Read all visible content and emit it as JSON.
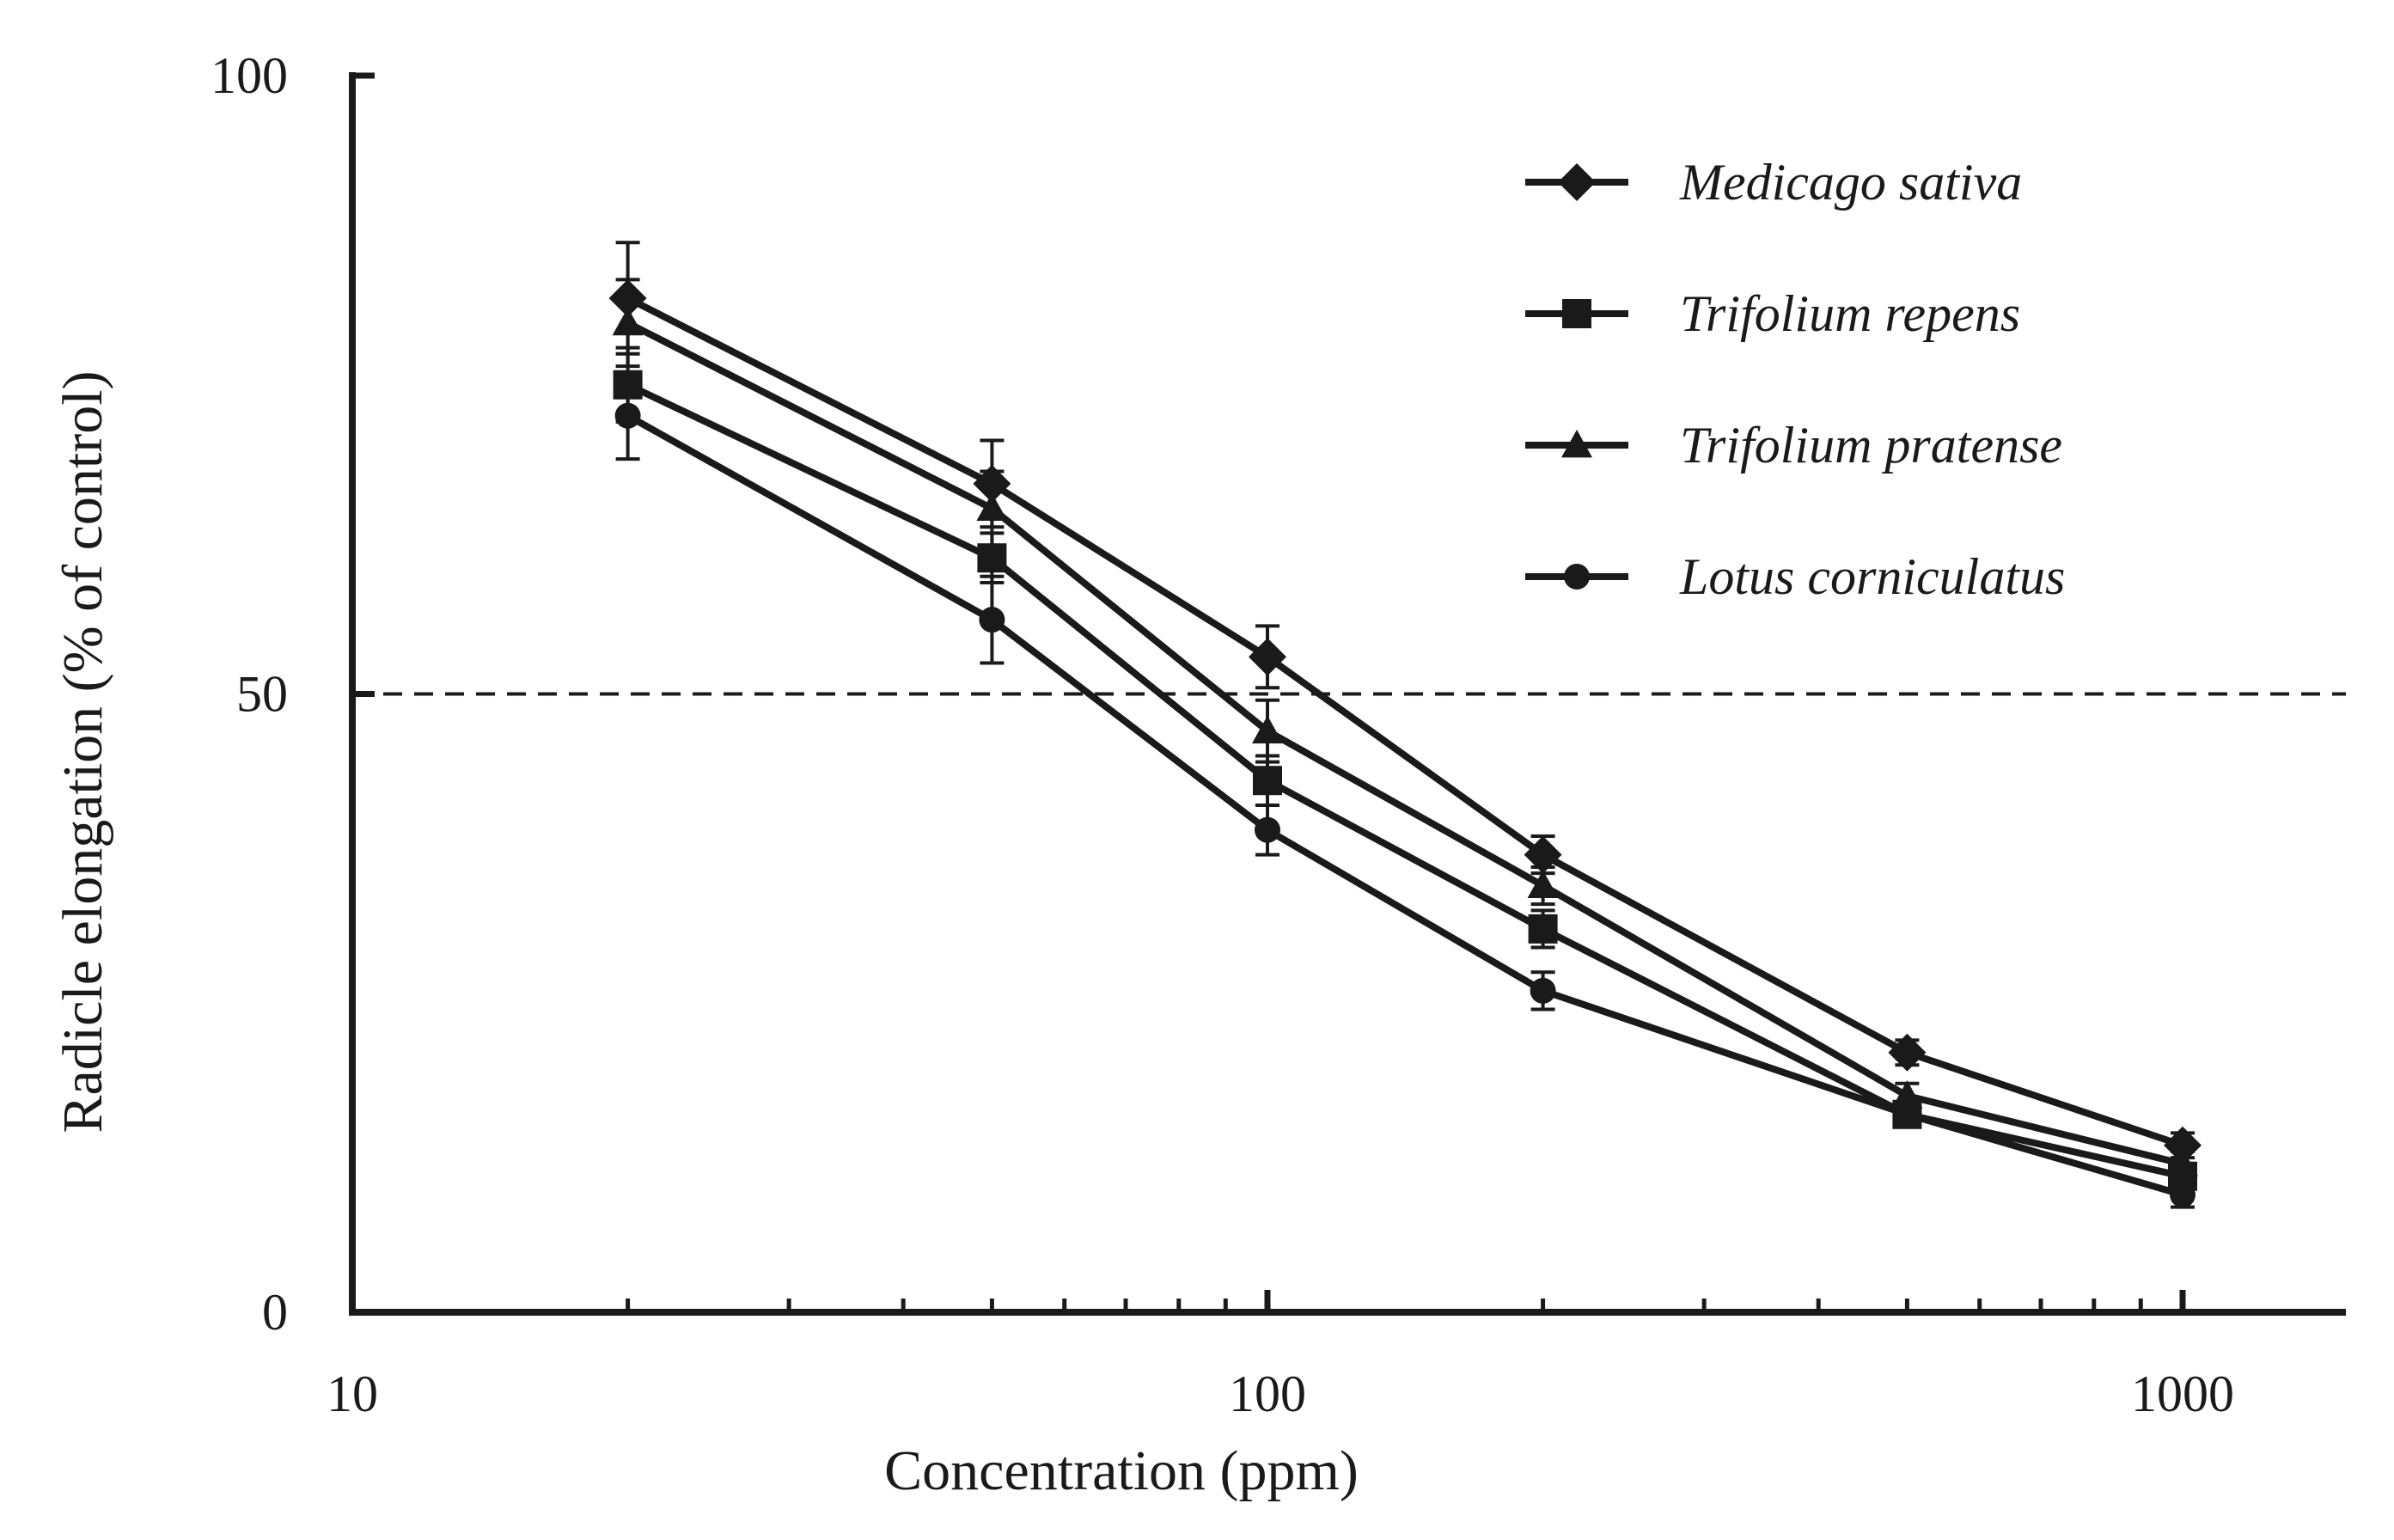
{
  "chart_data": {
    "type": "line",
    "title": "",
    "xlabel": "Concentration (ppm)",
    "ylabel": "Radicle elongation (% of control)",
    "xscale": "log",
    "xlim": [
      10,
      1500
    ],
    "ylim": [
      0,
      100
    ],
    "x_ticks": [
      10,
      100,
      1000
    ],
    "x_tick_labels": [
      "10",
      "100",
      "1000"
    ],
    "y_ticks": [
      0,
      50,
      100
    ],
    "y_tick_labels": [
      "0",
      "50",
      "100"
    ],
    "reference_line": {
      "y": 50,
      "style": "dashed"
    },
    "legend_position": "top-right",
    "x": [
      20,
      50,
      100,
      200,
      500,
      1000
    ],
    "series": [
      {
        "name": "Medicago sativa",
        "marker": "diamond",
        "values": [
          82,
          67,
          53,
          37,
          21,
          13.5
        ],
        "errors": [
          4.5,
          3.5,
          2.5,
          1.5,
          1.0,
          1.0
        ]
      },
      {
        "name": "Trifolium repens",
        "marker": "square",
        "values": [
          75,
          61,
          43,
          31,
          16,
          11
        ],
        "errors": [
          3.0,
          2.0,
          2.0,
          1.5,
          1.0,
          1.0
        ]
      },
      {
        "name": "Trifolium pratense",
        "marker": "triangle",
        "values": [
          80,
          65,
          47,
          34.5,
          17.5,
          12
        ],
        "errors": [
          3.5,
          3.0,
          2.5,
          1.5,
          1.0,
          1.0
        ]
      },
      {
        "name": "Lotus corniculatus",
        "marker": "circle",
        "values": [
          72.5,
          56,
          39,
          26,
          16,
          9.5
        ],
        "errors": [
          3.5,
          3.5,
          2.0,
          1.5,
          1.0,
          1.0
        ]
      }
    ]
  }
}
